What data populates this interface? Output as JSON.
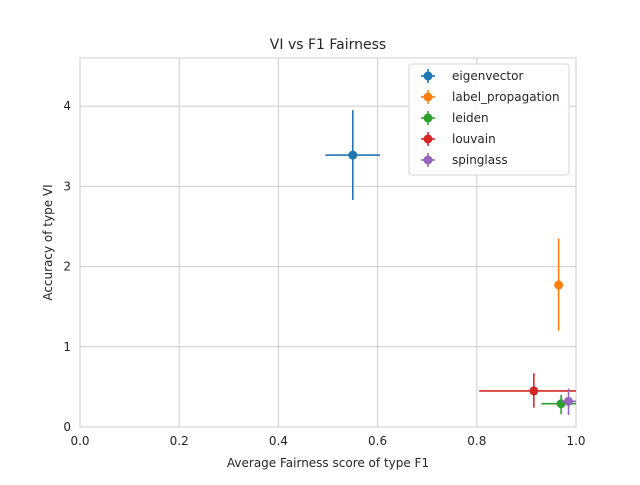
{
  "chart_data": {
    "type": "scatter",
    "title": "VI vs F1 Fairness",
    "xlabel": "Average Fairness score of type F1",
    "ylabel": "Accuracy of type VI",
    "xlim": [
      0.0,
      1.0
    ],
    "ylim": [
      0,
      4.6
    ],
    "xticks": [
      "0.0",
      "0.2",
      "0.4",
      "0.6",
      "0.8",
      "1.0"
    ],
    "xtick_values": [
      0.0,
      0.2,
      0.4,
      0.6,
      0.8,
      1.0
    ],
    "yticks": [
      "0",
      "1",
      "2",
      "3",
      "4"
    ],
    "ytick_values": [
      0,
      1,
      2,
      3,
      4
    ],
    "grid": true,
    "legend_position": "top-right",
    "series": [
      {
        "name": "eigenvector",
        "color": "#1f77b4",
        "x": 0.55,
        "y": 3.39,
        "xerr": [
          0.055,
          0.055
        ],
        "yerr": [
          0.56,
          0.56
        ]
      },
      {
        "name": "label_propagation",
        "color": "#ff7f0e",
        "x": 0.965,
        "y": 1.77,
        "xerr": [
          0.005,
          0.005
        ],
        "yerr": [
          0.57,
          0.58
        ]
      },
      {
        "name": "leiden",
        "color": "#2ca02c",
        "x": 0.97,
        "y": 0.29,
        "xerr": [
          0.04,
          0.03
        ],
        "yerr": [
          0.13,
          0.11
        ]
      },
      {
        "name": "louvain",
        "color": "#d62728",
        "x": 0.915,
        "y": 0.45,
        "xerr": [
          0.11,
          0.085
        ],
        "yerr": [
          0.21,
          0.22
        ]
      },
      {
        "name": "spinglass",
        "color": "#9467bd",
        "x": 0.985,
        "y": 0.32,
        "xerr": [
          0.015,
          0.015
        ],
        "yerr": [
          0.17,
          0.16
        ]
      }
    ]
  }
}
